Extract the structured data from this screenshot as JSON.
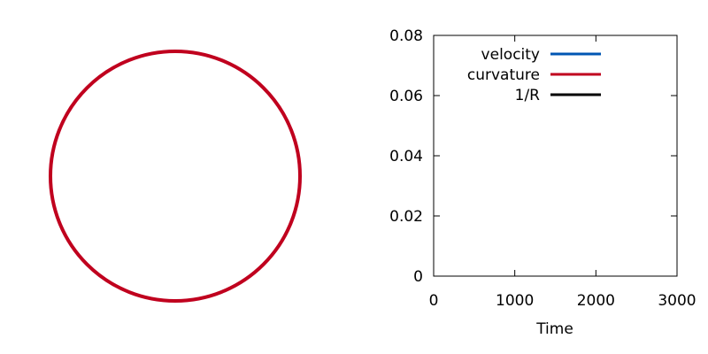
{
  "chart_data": [
    {
      "type": "scatter",
      "shape": "circle",
      "color": "#c0001e",
      "grid": false,
      "axes": false
    },
    {
      "type": "line",
      "xlabel": "Time",
      "ylabel": "",
      "xlim": [
        0,
        3000
      ],
      "ylim": [
        0,
        0.08
      ],
      "x_ticks": [
        "0",
        "1000",
        "2000",
        "3000"
      ],
      "y_ticks": [
        "0",
        "0.02",
        "0.04",
        "0.06",
        "0.08"
      ],
      "grid": false,
      "legend_position": "top-right",
      "series": [
        {
          "name": "velocity",
          "color": "#0056b3",
          "x": [],
          "y": []
        },
        {
          "name": "curvature",
          "color": "#c0001e",
          "x": [],
          "y": []
        },
        {
          "name": "1/R",
          "color": "#000000",
          "x": [],
          "y": []
        }
      ]
    }
  ]
}
